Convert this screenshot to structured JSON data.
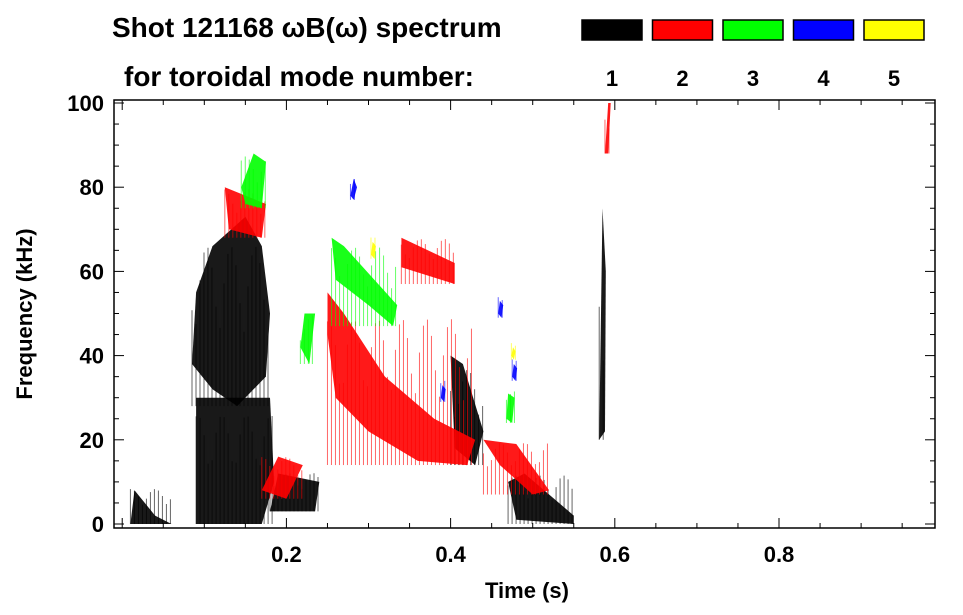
{
  "chart_data": {
    "type": "heatmap",
    "title": "Shot 121168 ωB(ω) spectrum",
    "subtitle": "for toroidal mode number:",
    "xlabel": "Time (s)",
    "ylabel": "Frequency (kHz)",
    "xlim": [
      -0.01,
      0.99
    ],
    "ylim": [
      0,
      100
    ],
    "xticks": [
      0.2,
      0.4,
      0.6,
      0.8
    ],
    "xtick_labels": [
      "0.2",
      "0.4",
      "0.6",
      "0.8"
    ],
    "yticks": [
      0,
      20,
      40,
      60,
      80,
      100
    ],
    "ytick_labels": [
      "0",
      "20",
      "40",
      "60",
      "80",
      "100"
    ],
    "legend": [
      {
        "mode": "1",
        "color": "#000000"
      },
      {
        "mode": "2",
        "color": "#ff0000"
      },
      {
        "mode": "3",
        "color": "#00ff00"
      },
      {
        "mode": "4",
        "color": "#0000ff"
      },
      {
        "mode": "5",
        "color": "#ffff00"
      }
    ],
    "legend_placement": "top",
    "regions": [
      {
        "mode": 1,
        "points": [
          [
            0.085,
            38
          ],
          [
            0.09,
            55
          ],
          [
            0.11,
            66
          ],
          [
            0.15,
            73
          ],
          [
            0.17,
            66
          ],
          [
            0.18,
            50
          ],
          [
            0.175,
            35
          ],
          [
            0.14,
            28
          ],
          [
            0.11,
            32
          ]
        ]
      },
      {
        "mode": 1,
        "points": [
          [
            0.09,
            0
          ],
          [
            0.09,
            30
          ],
          [
            0.18,
            30
          ],
          [
            0.185,
            10
          ],
          [
            0.17,
            0
          ]
        ]
      },
      {
        "mode": 1,
        "points": [
          [
            0.18,
            3
          ],
          [
            0.19,
            12
          ],
          [
            0.24,
            10
          ],
          [
            0.235,
            3
          ]
        ]
      },
      {
        "mode": 1,
        "points": [
          [
            0.4,
            40
          ],
          [
            0.415,
            38
          ],
          [
            0.44,
            22
          ],
          [
            0.43,
            14
          ],
          [
            0.405,
            18
          ]
        ]
      },
      {
        "mode": 1,
        "points": [
          [
            0.47,
            10
          ],
          [
            0.49,
            12
          ],
          [
            0.55,
            2
          ],
          [
            0.55,
            0
          ],
          [
            0.48,
            1
          ]
        ]
      },
      {
        "mode": 1,
        "points": [
          [
            0.581,
            20
          ],
          [
            0.585,
            75
          ],
          [
            0.589,
            60
          ],
          [
            0.588,
            22
          ]
        ]
      },
      {
        "mode": 1,
        "points": [
          [
            0.01,
            0
          ],
          [
            0.015,
            8
          ],
          [
            0.04,
            2
          ],
          [
            0.06,
            0
          ]
        ]
      },
      {
        "mode": 2,
        "points": [
          [
            0.25,
            55
          ],
          [
            0.27,
            50
          ],
          [
            0.32,
            35
          ],
          [
            0.38,
            25
          ],
          [
            0.43,
            20
          ],
          [
            0.42,
            14
          ],
          [
            0.36,
            15
          ],
          [
            0.3,
            22
          ],
          [
            0.26,
            30
          ],
          [
            0.25,
            45
          ]
        ]
      },
      {
        "mode": 2,
        "points": [
          [
            0.34,
            68
          ],
          [
            0.405,
            62
          ],
          [
            0.405,
            57
          ],
          [
            0.34,
            61
          ]
        ]
      },
      {
        "mode": 2,
        "points": [
          [
            0.125,
            80
          ],
          [
            0.175,
            76
          ],
          [
            0.17,
            68
          ],
          [
            0.13,
            70
          ]
        ]
      },
      {
        "mode": 2,
        "points": [
          [
            0.44,
            20
          ],
          [
            0.48,
            19
          ],
          [
            0.52,
            8
          ],
          [
            0.5,
            7
          ],
          [
            0.46,
            14
          ]
        ]
      },
      {
        "mode": 2,
        "points": [
          [
            0.588,
            88
          ],
          [
            0.592,
            100
          ],
          [
            0.595,
            100
          ],
          [
            0.592,
            88
          ]
        ]
      },
      {
        "mode": 2,
        "points": [
          [
            0.17,
            8
          ],
          [
            0.19,
            16
          ],
          [
            0.22,
            14
          ],
          [
            0.2,
            6
          ]
        ]
      },
      {
        "mode": 3,
        "points": [
          [
            0.255,
            68
          ],
          [
            0.27,
            66
          ],
          [
            0.335,
            52
          ],
          [
            0.33,
            47
          ],
          [
            0.3,
            52
          ],
          [
            0.26,
            58
          ]
        ]
      },
      {
        "mode": 3,
        "points": [
          [
            0.217,
            42
          ],
          [
            0.222,
            50
          ],
          [
            0.235,
            50
          ],
          [
            0.228,
            38
          ]
        ]
      },
      {
        "mode": 3,
        "points": [
          [
            0.145,
            80
          ],
          [
            0.16,
            88
          ],
          [
            0.175,
            86
          ],
          [
            0.17,
            75
          ],
          [
            0.15,
            76
          ]
        ]
      },
      {
        "mode": 3,
        "points": [
          [
            0.468,
            25
          ],
          [
            0.47,
            31
          ],
          [
            0.478,
            30
          ],
          [
            0.475,
            24
          ]
        ]
      },
      {
        "mode": 4,
        "points": [
          [
            0.278,
            78
          ],
          [
            0.282,
            82
          ],
          [
            0.286,
            80
          ],
          [
            0.282,
            77
          ]
        ]
      },
      {
        "mode": 4,
        "points": [
          [
            0.388,
            30
          ],
          [
            0.39,
            33
          ],
          [
            0.394,
            32
          ],
          [
            0.392,
            29
          ]
        ]
      },
      {
        "mode": 4,
        "points": [
          [
            0.458,
            50
          ],
          [
            0.46,
            53
          ],
          [
            0.464,
            52
          ],
          [
            0.462,
            49
          ]
        ]
      },
      {
        "mode": 4,
        "points": [
          [
            0.475,
            35
          ],
          [
            0.477,
            38
          ],
          [
            0.481,
            37
          ],
          [
            0.479,
            34
          ]
        ]
      },
      {
        "mode": 5,
        "points": [
          [
            0.303,
            64
          ],
          [
            0.305,
            67
          ],
          [
            0.309,
            66
          ],
          [
            0.307,
            63
          ]
        ]
      },
      {
        "mode": 5,
        "points": [
          [
            0.474,
            40
          ],
          [
            0.476,
            42
          ],
          [
            0.479,
            41
          ],
          [
            0.477,
            39
          ]
        ]
      }
    ]
  }
}
